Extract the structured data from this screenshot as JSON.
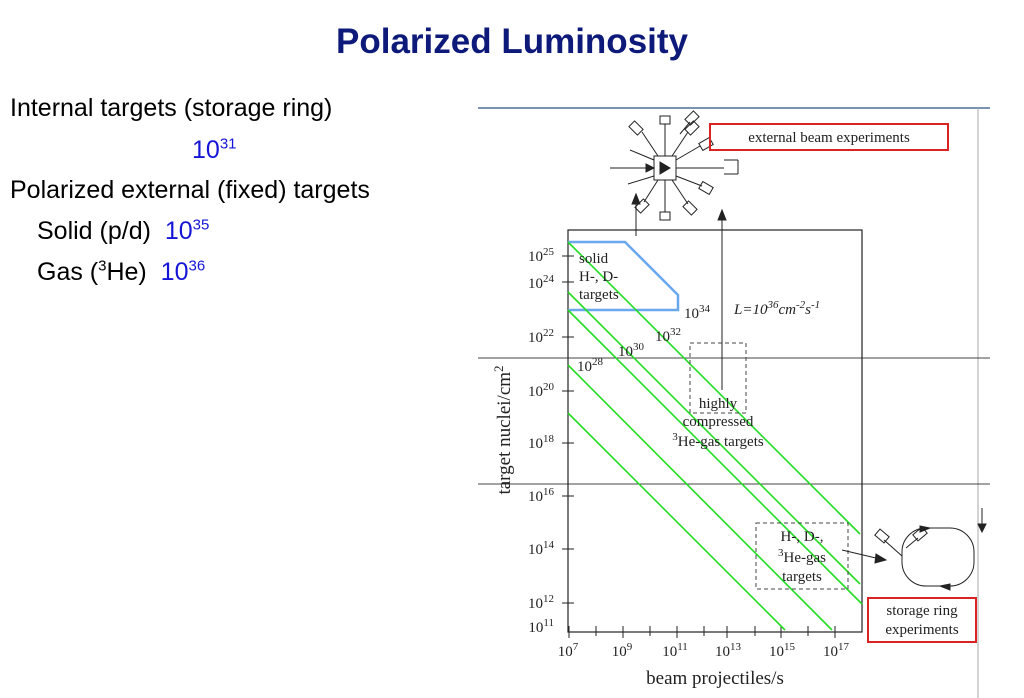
{
  "title": "Polarized Luminosity",
  "text": {
    "internal": "Internal targets (storage ring)",
    "internal_base": "10",
    "internal_exp": "31",
    "external": "Polarized external (fixed) targets",
    "solid_label": "Solid (p/d)",
    "solid_base": "10",
    "solid_exp": "35",
    "gas_prefix": "Gas (",
    "gas_sup": "3",
    "gas_suffix": "He)",
    "gas_base": "10",
    "gas_exp": "36"
  },
  "diagram": {
    "external_beam_label": "external beam experiments",
    "storage_ring_label_1": "storage ring",
    "storage_ring_label_2": "experiments",
    "x_axis_label": "beam projectiles/s",
    "y_axis_label": "target nuclei/cm",
    "y_axis_sup": "2",
    "x_ticks": [
      {
        "base": "10",
        "exp": "7"
      },
      {
        "base": "10",
        "exp": "9"
      },
      {
        "base": "10",
        "exp": "11"
      },
      {
        "base": "10",
        "exp": "13"
      },
      {
        "base": "10",
        "exp": "15"
      },
      {
        "base": "10",
        "exp": "17"
      }
    ],
    "y_ticks": [
      {
        "base": "10",
        "exp": "25"
      },
      {
        "base": "10",
        "exp": "24"
      },
      {
        "base": "10",
        "exp": "22"
      },
      {
        "base": "10",
        "exp": "20"
      },
      {
        "base": "10",
        "exp": "18"
      },
      {
        "base": "10",
        "exp": "16"
      },
      {
        "base": "10",
        "exp": "14"
      },
      {
        "base": "10",
        "exp": "12"
      },
      {
        "base": "10",
        "exp": "11"
      }
    ],
    "luminosity_lines": [
      {
        "base": "10",
        "exp": "28"
      },
      {
        "base": "10",
        "exp": "30"
      },
      {
        "base": "10",
        "exp": "32"
      },
      {
        "base": "10",
        "exp": "34"
      }
    ],
    "luminosity_formula": {
      "prefix": "L=10",
      "exp": "36",
      "unit": "cm",
      "unit_exp": "-2",
      "unit2": "s",
      "unit2_exp": "-1"
    },
    "solid_box": [
      "solid",
      "H-, D-",
      "targets"
    ],
    "compressed_box": [
      "highly",
      "compressed",
      "He-gas targets"
    ],
    "compressed_sup": "3",
    "internal_box": [
      "H-, D-,",
      "He-gas",
      "targets"
    ],
    "internal_sup": "3",
    "colors": {
      "lines": "#22dd22",
      "solid_region": "#6aa8ee",
      "label_box": "#dd2222",
      "title": "#0d1a7a",
      "exponent": "#1515d8"
    }
  }
}
